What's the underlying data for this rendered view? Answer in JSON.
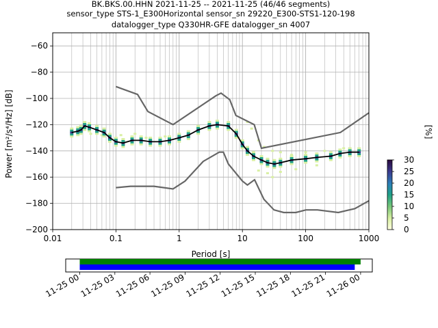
{
  "chart_data": {
    "type": "line",
    "title_lines": [
      "BK.BKS.00.HHN   2021-11-25 -- 2021-11-25  (46/46 segments)",
      "sensor_type STS-1_E300Horizontal sensor_sn 29220_E300-STS1-120-198",
      "datalogger_type Q330HR-GFE datalogger_sn 4007"
    ],
    "xlabel": "Period [s]",
    "ylabel": "Power [m²/s⁴/Hz] [dB]",
    "xscale": "log",
    "xlim": [
      0.01,
      1000
    ],
    "ylim": [
      -200,
      -50
    ],
    "grid": true,
    "x_ticks": [
      {
        "v": 0.01,
        "t": "0.01"
      },
      {
        "v": 0.1,
        "t": "0.1"
      },
      {
        "v": 1,
        "t": "1"
      },
      {
        "v": 10,
        "t": "10"
      },
      {
        "v": 100,
        "t": "100"
      },
      {
        "v": 1000,
        "t": "1000"
      }
    ],
    "y_ticks": [
      {
        "v": -60,
        "t": "−60"
      },
      {
        "v": -80,
        "t": "−80"
      },
      {
        "v": -100,
        "t": "−100"
      },
      {
        "v": -120,
        "t": "−120"
      },
      {
        "v": -140,
        "t": "−140"
      },
      {
        "v": -160,
        "t": "−160"
      },
      {
        "v": -180,
        "t": "−180"
      },
      {
        "v": -200,
        "t": "−200"
      }
    ],
    "noise_models": {
      "color": "#666666",
      "high": [
        [
          0.1,
          -91
        ],
        [
          0.22,
          -97
        ],
        [
          0.32,
          -110
        ],
        [
          0.8,
          -120
        ],
        [
          3.8,
          -98
        ],
        [
          4.6,
          -96
        ],
        [
          6.3,
          -101
        ],
        [
          7.9,
          -113
        ],
        [
          15.4,
          -120
        ],
        [
          20,
          -138
        ],
        [
          354,
          -126
        ],
        [
          1000,
          -111
        ]
      ],
      "low": [
        [
          0.1,
          -168
        ],
        [
          0.17,
          -167
        ],
        [
          0.4,
          -167
        ],
        [
          0.8,
          -169
        ],
        [
          1.24,
          -163
        ],
        [
          2.4,
          -148
        ],
        [
          4.3,
          -141
        ],
        [
          5.0,
          -141
        ],
        [
          6.0,
          -150
        ],
        [
          10,
          -163
        ],
        [
          12,
          -166
        ],
        [
          15.6,
          -162
        ],
        [
          21.9,
          -177
        ],
        [
          31.6,
          -185
        ],
        [
          45,
          -187
        ],
        [
          70,
          -187
        ],
        [
          101,
          -185
        ],
        [
          154,
          -185
        ],
        [
          328,
          -187
        ],
        [
          600,
          -184
        ],
        [
          1000,
          -178
        ]
      ]
    },
    "mean_curve": {
      "color": "#000000",
      "points": [
        [
          0.02,
          -126
        ],
        [
          0.025,
          -125
        ],
        [
          0.028,
          -124
        ],
        [
          0.032,
          -121
        ],
        [
          0.038,
          -122
        ],
        [
          0.05,
          -124
        ],
        [
          0.065,
          -126
        ],
        [
          0.08,
          -130
        ],
        [
          0.1,
          -133
        ],
        [
          0.13,
          -134
        ],
        [
          0.18,
          -132
        ],
        [
          0.25,
          -132
        ],
        [
          0.35,
          -133
        ],
        [
          0.5,
          -133
        ],
        [
          0.7,
          -132
        ],
        [
          1,
          -130
        ],
        [
          1.4,
          -128
        ],
        [
          2,
          -124
        ],
        [
          3,
          -121
        ],
        [
          4,
          -120
        ],
        [
          6,
          -121
        ],
        [
          8,
          -127
        ],
        [
          10,
          -135
        ],
        [
          12,
          -140
        ],
        [
          15,
          -144
        ],
        [
          20,
          -147
        ],
        [
          25,
          -149
        ],
        [
          32,
          -150
        ],
        [
          40,
          -149
        ],
        [
          60,
          -147
        ],
        [
          100,
          -146
        ],
        [
          150,
          -145
        ],
        [
          250,
          -144
        ],
        [
          350,
          -142
        ],
        [
          500,
          -141
        ],
        [
          700,
          -141
        ]
      ]
    },
    "probability_scatter": [
      {
        "x": 0.04,
        "y": -127,
        "pct": 6
      },
      {
        "x": 0.06,
        "y": -128,
        "pct": 4
      },
      {
        "x": 0.12,
        "y": -128,
        "pct": 6
      },
      {
        "x": 0.2,
        "y": -127,
        "pct": 4
      },
      {
        "x": 0.3,
        "y": -130,
        "pct": 6
      },
      {
        "x": 0.6,
        "y": -129,
        "pct": 4
      },
      {
        "x": 12,
        "y": -118,
        "pct": 3
      },
      {
        "x": 14,
        "y": -123,
        "pct": 4
      },
      {
        "x": 18,
        "y": -132,
        "pct": 5
      },
      {
        "x": 22,
        "y": -137,
        "pct": 4
      },
      {
        "x": 30,
        "y": -140,
        "pct": 3
      },
      {
        "x": 40,
        "y": -141,
        "pct": 3
      },
      {
        "x": 60,
        "y": -143,
        "pct": 3
      },
      {
        "x": 100,
        "y": -141,
        "pct": 3
      },
      {
        "x": 200,
        "y": -140,
        "pct": 3
      },
      {
        "x": 400,
        "y": -138,
        "pct": 3
      },
      {
        "x": 25,
        "y": -157,
        "pct": 4
      },
      {
        "x": 40,
        "y": -156,
        "pct": 3
      },
      {
        "x": 70,
        "y": -154,
        "pct": 3
      },
      {
        "x": 150,
        "y": -151,
        "pct": 3
      },
      {
        "x": 18,
        "y": -155,
        "pct": 5
      },
      {
        "x": 30,
        "y": -160,
        "pct": 3
      }
    ],
    "colorbar": {
      "label": "[%]",
      "min": 0,
      "max": 30,
      "ticks": [
        {
          "v": 0,
          "t": "0"
        },
        {
          "v": 5,
          "t": "5"
        },
        {
          "v": 10,
          "t": "10"
        },
        {
          "v": 15,
          "t": "15"
        },
        {
          "v": 20,
          "t": "20"
        },
        {
          "v": 25,
          "t": "25"
        },
        {
          "v": 30,
          "t": "30"
        }
      ],
      "colors": [
        "#ffffe0",
        "#d9f0a3",
        "#78c679",
        "#1fa187",
        "#2c7fb8",
        "#3b3b8f",
        "#2b0a3d"
      ]
    },
    "coverage": {
      "tick_labels": [
        "11-25 00",
        "11-25 03",
        "11-25 06",
        "11-25 09",
        "11-25 12",
        "11-25 15",
        "11-25 18",
        "11-25 21",
        "11-26 00"
      ],
      "tick_hours": [
        0,
        3,
        6,
        9,
        12,
        15,
        18,
        21,
        24
      ],
      "xlim_hours": [
        -1.2,
        25.0
      ],
      "bars": [
        {
          "color": "#008000",
          "start_hour": 0.0,
          "end_hour": 24.0
        },
        {
          "color": "#0000ff",
          "start_hour": 0.0,
          "end_hour": 23.5
        }
      ]
    }
  }
}
